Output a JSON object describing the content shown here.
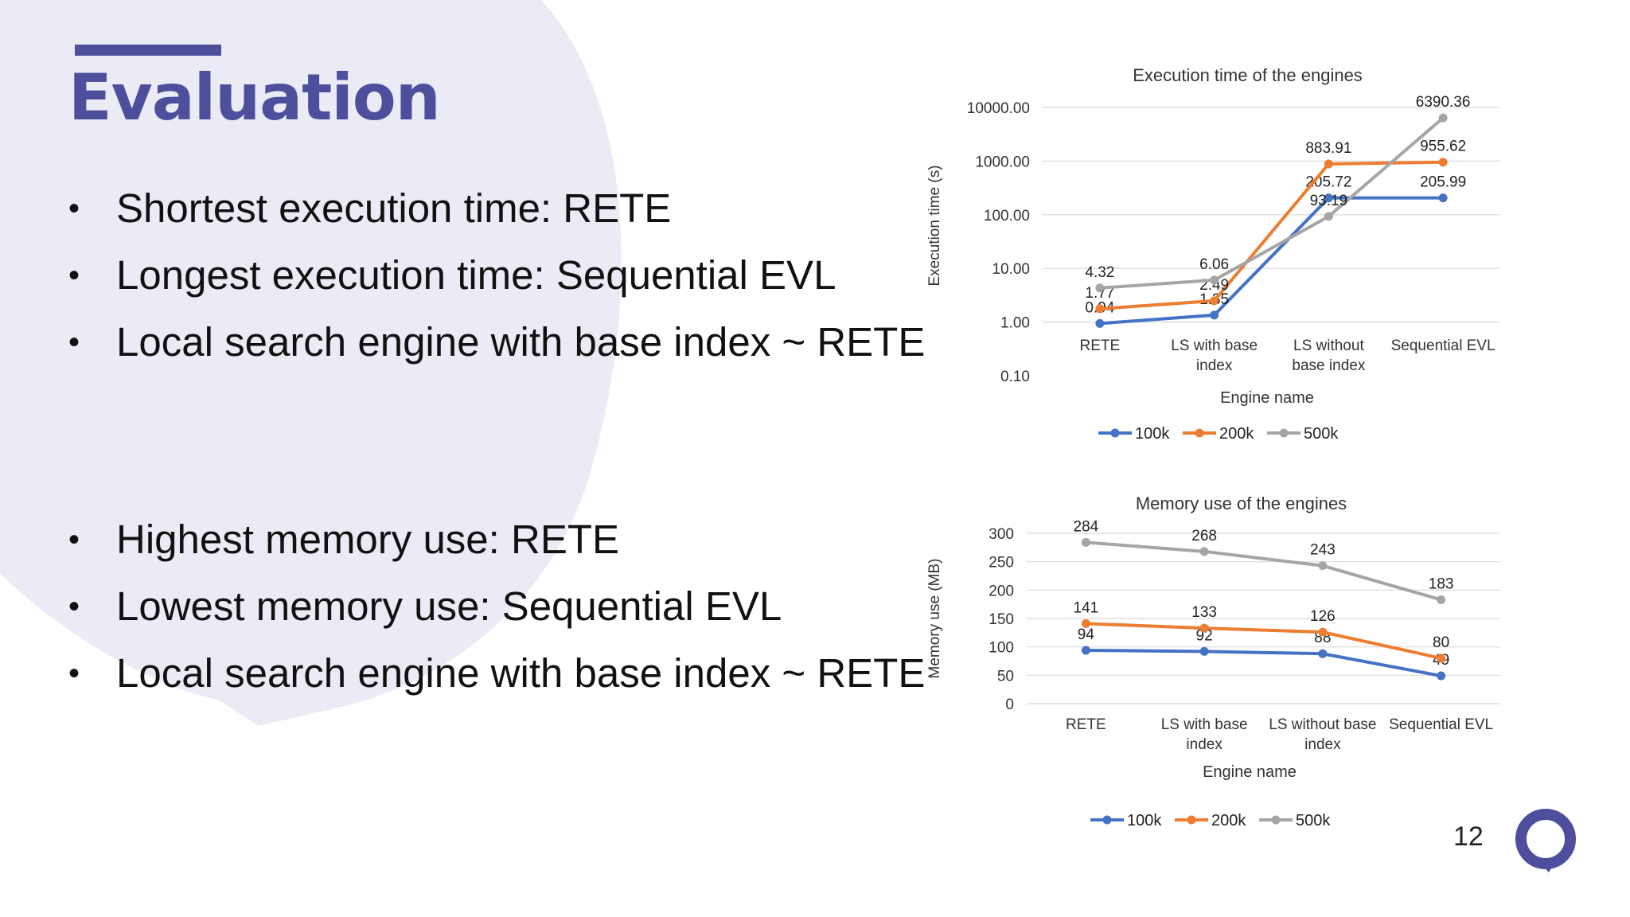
{
  "slide": {
    "title": "Evaluation",
    "page_number": "12",
    "accent_color": "#4e4f9c",
    "bullets_top": [
      "Shortest execution time: RETE",
      "Longest execution time: Sequential EVL",
      "Local search engine with base index ~ RETE"
    ],
    "bullets_bottom": [
      "Highest memory use: RETE",
      "Lowest memory use: Sequential EVL",
      "Local search engine with base index ~ RETE"
    ],
    "logo_icon": "speech-bubble-ring-icon"
  },
  "chart_data": [
    {
      "type": "line",
      "title": "Execution time of the engines",
      "xlabel": "Engine name",
      "ylabel": "Execution time (s)",
      "yscale": "log",
      "ylim": [
        0.1,
        10000
      ],
      "yticks": [
        "0.10",
        "1.00",
        "10.00",
        "100.00",
        "1000.00",
        "10000.00"
      ],
      "categories": [
        [
          "RETE"
        ],
        [
          "LS with base",
          "index"
        ],
        [
          "LS without",
          "base index"
        ],
        [
          "Sequential EVL"
        ]
      ],
      "series": [
        {
          "name": "100k",
          "color": "#4472c4",
          "values": [
            0.94,
            1.35,
            205.72,
            205.99
          ],
          "labels": [
            "0.94",
            "1.35",
            "205.72",
            "205.99"
          ]
        },
        {
          "name": "200k",
          "color": "#ed7d31",
          "values": [
            1.77,
            2.49,
            883.91,
            955.62
          ],
          "labels": [
            "1.77",
            "2.49",
            "883.91",
            "955.62"
          ]
        },
        {
          "name": "500k",
          "color": "#a5a5a5",
          "values": [
            4.32,
            6.06,
            93.19,
            6390.36
          ],
          "labels": [
            "4.32",
            "6.06",
            "93.19",
            "6390.36"
          ]
        }
      ],
      "legend": "bottom",
      "grid": true
    },
    {
      "type": "line",
      "title": "Memory use of the engines",
      "xlabel": "Engine name",
      "ylabel": "Memory use (MB)",
      "ylim": [
        0,
        300
      ],
      "yticks": [
        "0",
        "50",
        "100",
        "150",
        "200",
        "250",
        "300"
      ],
      "categories": [
        [
          "RETE"
        ],
        [
          "LS with base",
          "index"
        ],
        [
          "LS without base",
          "index"
        ],
        [
          "Sequential EVL"
        ]
      ],
      "series": [
        {
          "name": "100k",
          "color": "#4472c4",
          "values": [
            94,
            92,
            88,
            49
          ],
          "labels": [
            "94",
            "92",
            "88",
            "49"
          ]
        },
        {
          "name": "200k",
          "color": "#ed7d31",
          "values": [
            141,
            133,
            126,
            80
          ],
          "labels": [
            "141",
            "133",
            "126",
            "80"
          ]
        },
        {
          "name": "500k",
          "color": "#a5a5a5",
          "values": [
            284,
            268,
            243,
            183
          ],
          "labels": [
            "284",
            "268",
            "243",
            "183"
          ]
        }
      ],
      "legend": "bottom",
      "grid": true
    }
  ]
}
